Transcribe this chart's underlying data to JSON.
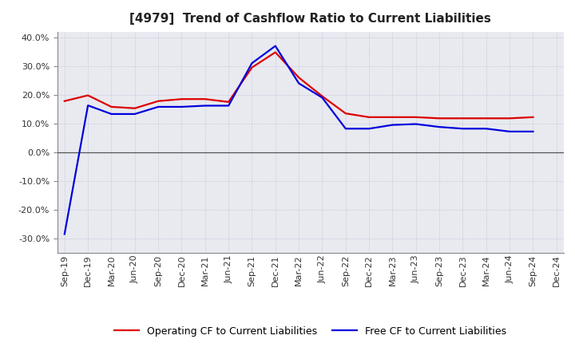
{
  "title": "[4979]  Trend of Cashflow Ratio to Current Liabilities",
  "x_labels": [
    "Sep-19",
    "Dec-19",
    "Mar-20",
    "Jun-20",
    "Sep-20",
    "Dec-20",
    "Mar-21",
    "Jun-21",
    "Sep-21",
    "Dec-21",
    "Mar-22",
    "Jun-22",
    "Sep-22",
    "Dec-22",
    "Mar-23",
    "Jun-23",
    "Sep-23",
    "Dec-23",
    "Mar-24",
    "Jun-24",
    "Sep-24",
    "Dec-24"
  ],
  "operating_cf": [
    0.178,
    0.198,
    0.158,
    0.153,
    0.178,
    0.185,
    0.185,
    0.175,
    0.295,
    0.348,
    0.26,
    0.195,
    0.135,
    0.122,
    0.122,
    0.122,
    0.118,
    0.118,
    0.118,
    0.118,
    0.122,
    null
  ],
  "free_cf": [
    -0.285,
    0.163,
    0.133,
    0.133,
    0.158,
    0.158,
    0.162,
    0.162,
    0.31,
    0.37,
    0.24,
    0.19,
    0.082,
    0.082,
    0.095,
    0.098,
    0.088,
    0.082,
    0.082,
    0.072,
    0.072,
    null
  ],
  "ylim": [
    -0.35,
    0.42
  ],
  "yticks": [
    -0.3,
    -0.2,
    -0.1,
    0.0,
    0.1,
    0.2,
    0.3,
    0.4
  ],
  "operating_color": "#dd0000",
  "free_color": "#0000dd",
  "bg_color": "#ffffff",
  "plot_bg_color": "#e8eaf0",
  "grid_color": "#aaaacc",
  "zero_line_color": "#555555",
  "legend_operating": "Operating CF to Current Liabilities",
  "legend_free": "Free CF to Current Liabilities",
  "title_fontsize": 11,
  "axis_fontsize": 8,
  "legend_fontsize": 9
}
